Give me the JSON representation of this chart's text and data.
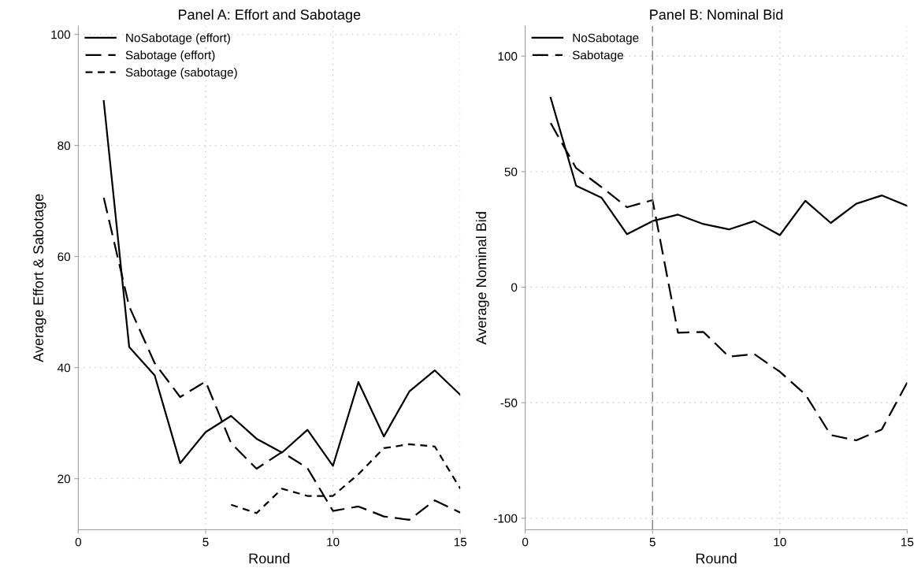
{
  "chart_data": [
    {
      "type": "line",
      "title": "Panel A: Effort and Sabotage",
      "xlabel": "Round",
      "ylabel": "Average Effort & Sabotage",
      "x": [
        1,
        2,
        3,
        4,
        5,
        6,
        7,
        8,
        9,
        10,
        11,
        12,
        13,
        14,
        15
      ],
      "xlim": [
        0,
        15
      ],
      "xticks": [
        0,
        5,
        10,
        15
      ],
      "ylim": [
        10.8,
        101.5
      ],
      "yticks": [
        20,
        40,
        60,
        80,
        100
      ],
      "grid": true,
      "legend": "top left",
      "series": [
        {
          "name": "NoSabotage (effort)",
          "color": "#000000",
          "line_style": "solid",
          "values": [
            88,
            43.7,
            38.6,
            22.8,
            28.4,
            31.3,
            27.2,
            24.7,
            28.8,
            22.3,
            37.4,
            27.6,
            35.7,
            39.5,
            35.1
          ]
        },
        {
          "name": "Sabotage (effort)",
          "color": "#000000",
          "line_style": "dashed",
          "values": [
            70.6,
            51,
            40.8,
            34.7,
            37.5,
            26.4,
            21.8,
            24.8,
            21.9,
            14.2,
            15.0,
            13.2,
            12.6,
            16.1,
            13.9
          ]
        },
        {
          "name": "Sabotage (sabotage)",
          "color": "#000000",
          "line_style": "dotted",
          "values": [
            null,
            null,
            null,
            null,
            null,
            15.3,
            13.8,
            18.2,
            16.9,
            16.9,
            20.8,
            25.5,
            26.2,
            25.8,
            18.2
          ]
        }
      ]
    },
    {
      "type": "line",
      "title": "Panel B: Nominal Bid",
      "xlabel": "Round",
      "ylabel": "Average Nominal Bid",
      "x": [
        1,
        2,
        3,
        4,
        5,
        6,
        7,
        8,
        9,
        10,
        11,
        12,
        13,
        14,
        15
      ],
      "xlim": [
        0,
        15
      ],
      "xticks": [
        0,
        5,
        10,
        15
      ],
      "ylim": [
        -105,
        113
      ],
      "yticks": [
        -100,
        -50,
        0,
        50,
        100
      ],
      "grid": true,
      "legend": "top left",
      "ref_lines": [
        {
          "axis": "x",
          "value": 5,
          "color": "#808080",
          "line_style": "dashed"
        }
      ],
      "series": [
        {
          "name": "NoSabotage",
          "color": "#000000",
          "line_style": "solid",
          "values": [
            82,
            43.9,
            38.7,
            22.9,
            28.6,
            31.4,
            27.3,
            25,
            28.6,
            22.5,
            37.4,
            27.8,
            36.1,
            39.7,
            35.2
          ]
        },
        {
          "name": "Sabotage",
          "color": "#000000",
          "line_style": "dashed",
          "values": [
            71,
            51.5,
            43.3,
            34.6,
            37.7,
            -19.7,
            -19.4,
            -30.1,
            -29,
            -36.6,
            -46.4,
            -64,
            -66.3,
            -61.6,
            -41.3
          ]
        }
      ]
    }
  ]
}
